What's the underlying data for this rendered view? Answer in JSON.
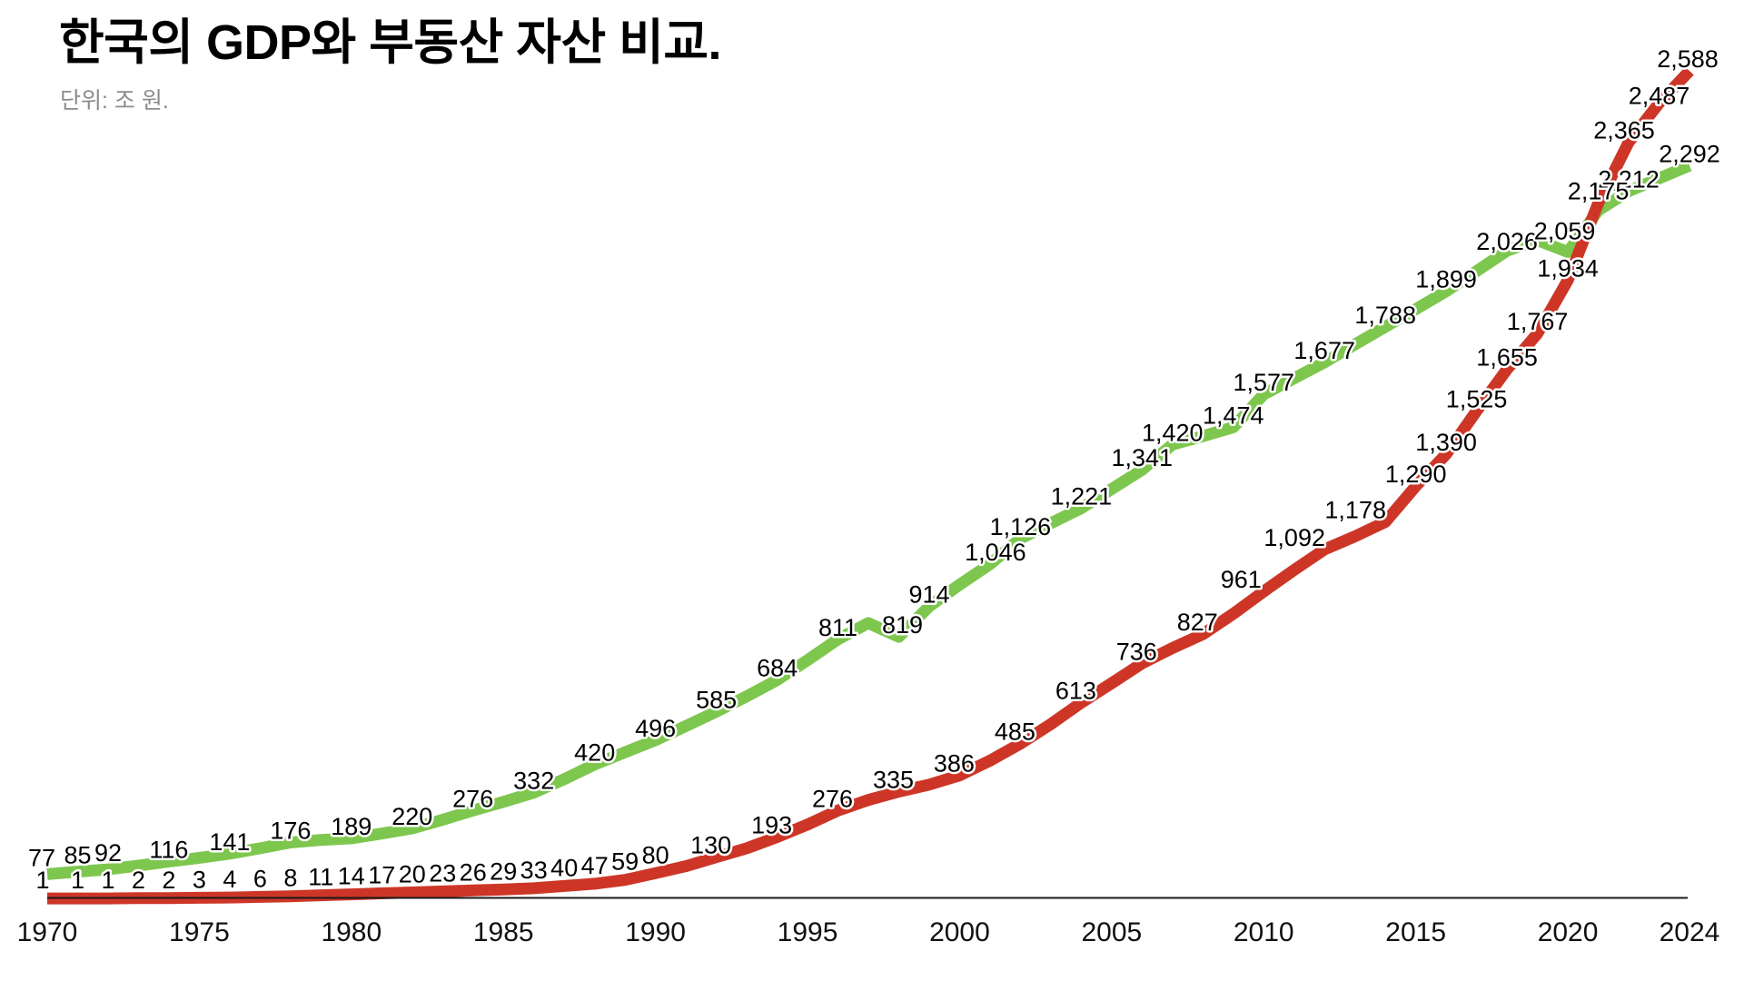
{
  "title": "한국의 GDP와 부동산 자산 비교.",
  "subtitle": "단위: 조 원.",
  "chart_data": {
    "type": "line",
    "unit": "조 원",
    "title": "한국의 GDP와 부동산 자산 비교.",
    "subtitle": "단위: 조 원.",
    "legend": "none",
    "grid": "off",
    "x_axis": {
      "min": 1970,
      "max": 2024,
      "ticks": [
        1970,
        1975,
        1980,
        1985,
        1990,
        1995,
        2000,
        2005,
        2010,
        2015,
        2020,
        2024
      ]
    },
    "y_axis": {
      "min": 0,
      "max": 2600,
      "visible": false
    },
    "colors": {
      "green_series": "#7ec74e",
      "red_series": "#cd3627",
      "axis": "#1a1a1a",
      "label": "#000000"
    },
    "series": [
      {
        "id": "gdp-green",
        "color": "#7ec74e",
        "stroke_width": 13,
        "points": [
          {
            "y": 1970,
            "v": 77,
            "l": "77",
            "dx": -6,
            "dy": -5
          },
          {
            "y": 1971,
            "v": 85,
            "l": "85",
            "dy": -5
          },
          {
            "y": 1972,
            "v": 92,
            "l": "92",
            "dy": -5
          },
          {
            "y": 1973,
            "v": 104
          },
          {
            "y": 1974,
            "v": 116,
            "l": "116"
          },
          {
            "y": 1975,
            "v": 128
          },
          {
            "y": 1976,
            "v": 141,
            "l": "141"
          },
          {
            "y": 1977,
            "v": 158
          },
          {
            "y": 1978,
            "v": 176,
            "l": "176"
          },
          {
            "y": 1979,
            "v": 184
          },
          {
            "y": 1980,
            "v": 189,
            "l": "189"
          },
          {
            "y": 1981,
            "v": 204
          },
          {
            "y": 1982,
            "v": 220,
            "l": "220"
          },
          {
            "y": 1983,
            "v": 247
          },
          {
            "y": 1984,
            "v": 276,
            "l": "276"
          },
          {
            "y": 1985,
            "v": 303
          },
          {
            "y": 1986,
            "v": 332,
            "l": "332"
          },
          {
            "y": 1987,
            "v": 374
          },
          {
            "y": 1988,
            "v": 420,
            "l": "420"
          },
          {
            "y": 1989,
            "v": 458
          },
          {
            "y": 1990,
            "v": 496,
            "l": "496"
          },
          {
            "y": 1991,
            "v": 540
          },
          {
            "y": 1992,
            "v": 585,
            "l": "585"
          },
          {
            "y": 1993,
            "v": 633
          },
          {
            "y": 1994,
            "v": 684,
            "l": "684"
          },
          {
            "y": 1995,
            "v": 746
          },
          {
            "y": 1996,
            "v": 811,
            "l": "811"
          },
          {
            "y": 1997,
            "v": 862
          },
          {
            "y": 1998,
            "v": 819,
            "l": "819",
            "dx": 4
          },
          {
            "y": 1999,
            "v": 914,
            "l": "914"
          },
          {
            "y": 2000,
            "v": 982
          },
          {
            "y": 2001,
            "v": 1046,
            "l": "1,046",
            "dx": 6
          },
          {
            "y": 2002,
            "v": 1126,
            "l": "1,126"
          },
          {
            "y": 2003,
            "v": 1174
          },
          {
            "y": 2004,
            "v": 1221,
            "l": "1,221"
          },
          {
            "y": 2005,
            "v": 1281
          },
          {
            "y": 2006,
            "v": 1341,
            "l": "1,341"
          },
          {
            "y": 2007,
            "v": 1420,
            "l": "1,420"
          },
          {
            "y": 2008,
            "v": 1446
          },
          {
            "y": 2009,
            "v": 1474,
            "l": "1,474"
          },
          {
            "y": 2010,
            "v": 1577,
            "l": "1,577"
          },
          {
            "y": 2011,
            "v": 1627
          },
          {
            "y": 2012,
            "v": 1677,
            "l": "1,677"
          },
          {
            "y": 2013,
            "v": 1733
          },
          {
            "y": 2014,
            "v": 1788,
            "l": "1,788"
          },
          {
            "y": 2015,
            "v": 1843
          },
          {
            "y": 2016,
            "v": 1899,
            "l": "1,899"
          },
          {
            "y": 2017,
            "v": 1962
          },
          {
            "y": 2018,
            "v": 2026,
            "l": "2,026",
            "dy": 3
          },
          {
            "y": 2019,
            "v": 2059,
            "l": "2,059",
            "dx": 30,
            "dy": 3
          },
          {
            "y": 2020,
            "v": 2022
          },
          {
            "y": 2021,
            "v": 2152
          },
          {
            "y": 2022,
            "v": 2212,
            "l": "2,212"
          },
          {
            "y": 2023,
            "v": 2252
          },
          {
            "y": 2024,
            "v": 2292,
            "l": "2,292",
            "dx": 0,
            "dy": 0
          }
        ]
      },
      {
        "id": "real-estate-red",
        "color": "#cd3627",
        "stroke_width": 13,
        "points": [
          {
            "y": 1970,
            "v": 1,
            "l": "1",
            "dx": -5,
            "dy": -7
          },
          {
            "y": 1971,
            "v": 1,
            "l": "1",
            "dy": -7
          },
          {
            "y": 1972,
            "v": 1,
            "l": "1",
            "dy": -7
          },
          {
            "y": 1973,
            "v": 2,
            "l": "2",
            "dy": -7
          },
          {
            "y": 1974,
            "v": 2,
            "l": "2",
            "dy": -7
          },
          {
            "y": 1975,
            "v": 3,
            "l": "3",
            "dy": -7
          },
          {
            "y": 1976,
            "v": 4,
            "l": "4",
            "dy": -7
          },
          {
            "y": 1977,
            "v": 6,
            "l": "6",
            "dy": -7
          },
          {
            "y": 1978,
            "v": 8,
            "l": "8",
            "dy": -7
          },
          {
            "y": 1979,
            "v": 11,
            "l": "11",
            "dy": -7
          },
          {
            "y": 1980,
            "v": 14,
            "l": "14",
            "dy": -7
          },
          {
            "y": 1981,
            "v": 17,
            "l": "17",
            "dy": -7
          },
          {
            "y": 1982,
            "v": 20,
            "l": "20",
            "dy": -7
          },
          {
            "y": 1983,
            "v": 23,
            "l": "23",
            "dy": -7
          },
          {
            "y": 1984,
            "v": 26,
            "l": "26",
            "dy": -7
          },
          {
            "y": 1985,
            "v": 29,
            "l": "29",
            "dy": -7
          },
          {
            "y": 1986,
            "v": 33,
            "l": "33",
            "dy": -7
          },
          {
            "y": 1987,
            "v": 40,
            "l": "40",
            "dy": -7
          },
          {
            "y": 1988,
            "v": 47,
            "l": "47",
            "dy": -7
          },
          {
            "y": 1989,
            "v": 59,
            "l": "59",
            "dy": -7
          },
          {
            "y": 1990,
            "v": 80,
            "l": "80",
            "dy": -7
          },
          {
            "y": 1991,
            "v": 102
          },
          {
            "y": 1992,
            "v": 130,
            "l": "130",
            "dx": -6
          },
          {
            "y": 1993,
            "v": 158
          },
          {
            "y": 1994,
            "v": 193,
            "l": "193",
            "dx": -6
          },
          {
            "y": 1995,
            "v": 232
          },
          {
            "y": 1996,
            "v": 276,
            "l": "276",
            "dx": -6
          },
          {
            "y": 1997,
            "v": 309
          },
          {
            "y": 1998,
            "v": 335,
            "l": "335",
            "dx": -6
          },
          {
            "y": 1999,
            "v": 357
          },
          {
            "y": 2000,
            "v": 386,
            "l": "386",
            "dx": -6
          },
          {
            "y": 2001,
            "v": 432
          },
          {
            "y": 2002,
            "v": 485,
            "l": "485",
            "dx": -6
          },
          {
            "y": 2003,
            "v": 546
          },
          {
            "y": 2004,
            "v": 613,
            "l": "613",
            "dx": -6
          },
          {
            "y": 2005,
            "v": 674
          },
          {
            "y": 2006,
            "v": 736,
            "l": "736",
            "dx": -6
          },
          {
            "y": 2007,
            "v": 784
          },
          {
            "y": 2008,
            "v": 827,
            "l": "827",
            "dx": -6
          },
          {
            "y": 2009,
            "v": 891
          },
          {
            "y": 2010,
            "v": 961,
            "l": "961",
            "dx": -25
          },
          {
            "y": 2011,
            "v": 1028
          },
          {
            "y": 2012,
            "v": 1092,
            "l": "1,092",
            "dx": -33
          },
          {
            "y": 2013,
            "v": 1133
          },
          {
            "y": 2014,
            "v": 1178,
            "l": "1,178",
            "dx": -33
          },
          {
            "y": 2015,
            "v": 1290,
            "l": "1,290"
          },
          {
            "y": 2016,
            "v": 1390,
            "l": "1,390"
          },
          {
            "y": 2017,
            "v": 1525,
            "l": "1,525"
          },
          {
            "y": 2018,
            "v": 1655,
            "l": "1,655"
          },
          {
            "y": 2019,
            "v": 1767,
            "l": "1,767"
          },
          {
            "y": 2020,
            "v": 1934,
            "l": "1,934"
          },
          {
            "y": 2021,
            "v": 2175,
            "l": "2,175"
          },
          {
            "y": 2022,
            "v": 2365,
            "l": "2,365",
            "dx": -5
          },
          {
            "y": 2023,
            "v": 2487,
            "l": "2,487",
            "dy": 5
          },
          {
            "y": 2024,
            "v": 2588,
            "l": "2,588",
            "dx": -2,
            "dy": 0
          }
        ]
      }
    ]
  }
}
